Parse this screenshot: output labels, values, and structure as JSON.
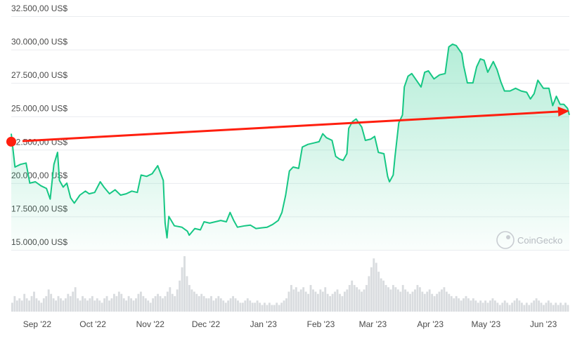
{
  "chart_data": {
    "type": "area",
    "currency_suffix": " US$",
    "y_ticks": [
      15000,
      17500,
      20000,
      22500,
      25000,
      27500,
      30000,
      32500
    ],
    "y_tick_labels": [
      "15.000,00 US$",
      "17.500,00 US$",
      "20.000,00 US$",
      "22.500,00 US$",
      "25.000,00 US$",
      "27.500,00 US$",
      "30.000,00 US$",
      "32.500,00 US$"
    ],
    "ylim": [
      15000,
      32500
    ],
    "x_tick_labels": [
      "Sep '22",
      "Oct '22",
      "Nov '22",
      "Dec '22",
      "Jan '23",
      "Feb '23",
      "Mar '23",
      "Apr '23",
      "May '23",
      "Jun '23"
    ],
    "x_tick_dates": [
      "2022-09-01",
      "2022-10-01",
      "2022-11-01",
      "2022-12-01",
      "2023-01-01",
      "2023-02-01",
      "2023-03-01",
      "2023-04-01",
      "2023-05-01",
      "2023-06-01"
    ],
    "x_range": [
      "2022-08-18",
      "2023-06-15"
    ],
    "series": [
      {
        "points": [
          [
            "2022-08-18",
            23700
          ],
          [
            "2022-08-20",
            21200
          ],
          [
            "2022-08-23",
            21400
          ],
          [
            "2022-08-26",
            21500
          ],
          [
            "2022-08-28",
            20000
          ],
          [
            "2022-08-31",
            20100
          ],
          [
            "2022-09-03",
            19800
          ],
          [
            "2022-09-06",
            19600
          ],
          [
            "2022-09-08",
            18800
          ],
          [
            "2022-09-10",
            21400
          ],
          [
            "2022-09-12",
            22300
          ],
          [
            "2022-09-13",
            20200
          ],
          [
            "2022-09-15",
            19700
          ],
          [
            "2022-09-17",
            20000
          ],
          [
            "2022-09-19",
            18900
          ],
          [
            "2022-09-21",
            18500
          ],
          [
            "2022-09-24",
            19100
          ],
          [
            "2022-09-27",
            19400
          ],
          [
            "2022-09-29",
            19200
          ],
          [
            "2022-10-02",
            19300
          ],
          [
            "2022-10-05",
            20100
          ],
          [
            "2022-10-07",
            19700
          ],
          [
            "2022-10-10",
            19200
          ],
          [
            "2022-10-13",
            19500
          ],
          [
            "2022-10-16",
            19100
          ],
          [
            "2022-10-19",
            19200
          ],
          [
            "2022-10-22",
            19400
          ],
          [
            "2022-10-25",
            19300
          ],
          [
            "2022-10-27",
            20600
          ],
          [
            "2022-10-30",
            20500
          ],
          [
            "2022-11-02",
            20700
          ],
          [
            "2022-11-05",
            21300
          ],
          [
            "2022-11-08",
            20200
          ],
          [
            "2022-11-09",
            17000
          ],
          [
            "2022-11-10",
            15900
          ],
          [
            "2022-11-11",
            17500
          ],
          [
            "2022-11-14",
            16800
          ],
          [
            "2022-11-18",
            16700
          ],
          [
            "2022-11-21",
            16400
          ],
          [
            "2022-11-22",
            16100
          ],
          [
            "2022-11-25",
            16600
          ],
          [
            "2022-11-28",
            16500
          ],
          [
            "2022-11-30",
            17100
          ],
          [
            "2022-12-03",
            17000
          ],
          [
            "2022-12-06",
            17100
          ],
          [
            "2022-12-09",
            17200
          ],
          [
            "2022-12-12",
            17100
          ],
          [
            "2022-12-14",
            17800
          ],
          [
            "2022-12-16",
            17200
          ],
          [
            "2022-12-18",
            16700
          ],
          [
            "2022-12-22",
            16800
          ],
          [
            "2022-12-25",
            16850
          ],
          [
            "2022-12-28",
            16600
          ],
          [
            "2022-12-31",
            16650
          ],
          [
            "2023-01-03",
            16700
          ],
          [
            "2023-01-06",
            16900
          ],
          [
            "2023-01-09",
            17200
          ],
          [
            "2023-01-11",
            17800
          ],
          [
            "2023-01-13",
            19100
          ],
          [
            "2023-01-15",
            20900
          ],
          [
            "2023-01-17",
            21200
          ],
          [
            "2023-01-20",
            21100
          ],
          [
            "2023-01-22",
            22700
          ],
          [
            "2023-01-25",
            22900
          ],
          [
            "2023-01-28",
            23000
          ],
          [
            "2023-01-31",
            23100
          ],
          [
            "2023-02-02",
            23700
          ],
          [
            "2023-02-04",
            23400
          ],
          [
            "2023-02-07",
            23200
          ],
          [
            "2023-02-09",
            22000
          ],
          [
            "2023-02-11",
            21800
          ],
          [
            "2023-02-13",
            21700
          ],
          [
            "2023-02-15",
            22200
          ],
          [
            "2023-02-16",
            24100
          ],
          [
            "2023-02-18",
            24600
          ],
          [
            "2023-02-20",
            24800
          ],
          [
            "2023-02-23",
            24200
          ],
          [
            "2023-02-25",
            23200
          ],
          [
            "2023-02-28",
            23300
          ],
          [
            "2023-03-02",
            23500
          ],
          [
            "2023-03-04",
            22300
          ],
          [
            "2023-03-07",
            22200
          ],
          [
            "2023-03-09",
            20500
          ],
          [
            "2023-03-10",
            20100
          ],
          [
            "2023-03-12",
            20600
          ],
          [
            "2023-03-13",
            22000
          ],
          [
            "2023-03-15",
            24500
          ],
          [
            "2023-03-17",
            25100
          ],
          [
            "2023-03-18",
            27200
          ],
          [
            "2023-03-20",
            28000
          ],
          [
            "2023-03-22",
            28200
          ],
          [
            "2023-03-24",
            27800
          ],
          [
            "2023-03-27",
            27200
          ],
          [
            "2023-03-29",
            28300
          ],
          [
            "2023-03-31",
            28400
          ],
          [
            "2023-04-03",
            27800
          ],
          [
            "2023-04-06",
            28100
          ],
          [
            "2023-04-09",
            28200
          ],
          [
            "2023-04-11",
            30200
          ],
          [
            "2023-04-13",
            30400
          ],
          [
            "2023-04-15",
            30300
          ],
          [
            "2023-04-18",
            29700
          ],
          [
            "2023-04-19",
            28800
          ],
          [
            "2023-04-21",
            27500
          ],
          [
            "2023-04-24",
            27500
          ],
          [
            "2023-04-26",
            28700
          ],
          [
            "2023-04-28",
            29300
          ],
          [
            "2023-04-30",
            29200
          ],
          [
            "2023-05-02",
            28300
          ],
          [
            "2023-05-05",
            29100
          ],
          [
            "2023-05-07",
            28500
          ],
          [
            "2023-05-09",
            27600
          ],
          [
            "2023-05-11",
            26900
          ],
          [
            "2023-05-14",
            26900
          ],
          [
            "2023-05-17",
            27100
          ],
          [
            "2023-05-20",
            26900
          ],
          [
            "2023-05-23",
            26800
          ],
          [
            "2023-05-25",
            26300
          ],
          [
            "2023-05-27",
            26700
          ],
          [
            "2023-05-29",
            27700
          ],
          [
            "2023-06-01",
            27100
          ],
          [
            "2023-06-04",
            27100
          ],
          [
            "2023-06-06",
            25800
          ],
          [
            "2023-06-08",
            26500
          ],
          [
            "2023-06-10",
            25900
          ],
          [
            "2023-06-12",
            25900
          ],
          [
            "2023-06-14",
            25600
          ],
          [
            "2023-06-15",
            25100
          ]
        ]
      }
    ],
    "volume_bars": [
      4,
      7,
      5,
      6,
      5,
      8,
      6,
      5,
      7,
      9,
      6,
      5,
      4,
      6,
      7,
      10,
      8,
      6,
      5,
      7,
      6,
      5,
      6,
      8,
      7,
      9,
      11,
      6,
      5,
      7,
      6,
      5,
      6,
      7,
      5,
      6,
      5,
      4,
      6,
      7,
      5,
      6,
      8,
      7,
      9,
      8,
      6,
      5,
      7,
      6,
      5,
      6,
      8,
      9,
      7,
      6,
      5,
      4,
      6,
      7,
      8,
      7,
      6,
      7,
      9,
      11,
      8,
      7,
      10,
      14,
      20,
      25,
      16,
      12,
      10,
      9,
      8,
      7,
      8,
      7,
      6,
      6,
      7,
      5,
      6,
      7,
      6,
      5,
      4,
      5,
      6,
      7,
      6,
      5,
      4,
      4,
      5,
      6,
      5,
      4,
      4,
      5,
      4,
      3,
      4,
      3,
      4,
      3,
      3,
      4,
      3,
      4,
      5,
      6,
      9,
      12,
      10,
      11,
      9,
      10,
      11,
      9,
      8,
      12,
      10,
      9,
      8,
      10,
      9,
      11,
      8,
      7,
      8,
      9,
      10,
      8,
      7,
      9,
      10,
      12,
      14,
      12,
      11,
      10,
      9,
      10,
      12,
      16,
      20,
      24,
      22,
      18,
      15,
      14,
      12,
      11,
      10,
      12,
      11,
      10,
      9,
      12,
      10,
      9,
      8,
      9,
      10,
      12,
      11,
      9,
      8,
      9,
      10,
      8,
      7,
      8,
      9,
      10,
      11,
      9,
      8,
      7,
      6,
      7,
      6,
      5,
      6,
      7,
      6,
      5,
      6,
      5,
      4,
      5,
      4,
      5,
      4,
      5,
      6,
      5,
      4,
      3,
      4,
      5,
      4,
      3,
      4,
      5,
      6,
      5,
      4,
      3,
      4,
      3,
      4,
      5,
      6,
      5,
      4,
      3,
      4,
      5,
      4,
      3,
      4,
      3,
      4,
      3,
      4,
      3
    ],
    "line_color": "#16c784",
    "fill_color": "#16c784",
    "volume_color": "#d9dcdf",
    "annotation": {
      "type": "arrow",
      "color": "#ff1f0f",
      "start": [
        "2022-08-18",
        23100
      ],
      "end": [
        "2023-06-15",
        25400
      ]
    },
    "watermark": "CoinGecko",
    "grid": true
  }
}
